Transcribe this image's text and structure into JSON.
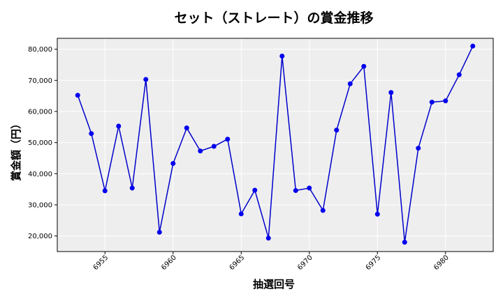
{
  "chart_data": {
    "type": "line",
    "title": "セット（ストレート）の賞金推移",
    "xlabel": "抽選回号",
    "ylabel": "賞金額（円）",
    "xlim": [
      6951.5,
      6983.5
    ],
    "ylim": [
      15000,
      83500
    ],
    "x_ticks": [
      6955,
      6960,
      6965,
      6970,
      6975,
      6980
    ],
    "y_ticks": [
      20000,
      30000,
      40000,
      50000,
      60000,
      70000,
      80000
    ],
    "y_tick_labels": [
      "20,000",
      "30,000",
      "40,000",
      "50,000",
      "60,000",
      "70,000",
      "80,000"
    ],
    "grid": true,
    "colors": {
      "line": "#0000cc",
      "marker": "#0000ee",
      "plot_bg": "#eeeeee",
      "grid": "#ffffff"
    },
    "series": [
      {
        "x": [
          6953,
          6954,
          6955,
          6956,
          6957,
          6958,
          6959,
          6960,
          6961,
          6962,
          6963,
          6964,
          6965,
          6966,
          6967,
          6968,
          6969,
          6970,
          6971,
          6972,
          6973,
          6974,
          6975,
          6976,
          6977,
          6978,
          6979,
          6980,
          6981,
          6982
        ],
        "values": [
          65200,
          52900,
          34500,
          55300,
          35400,
          70300,
          21200,
          43300,
          54700,
          47300,
          48800,
          51100,
          27100,
          34700,
          19300,
          77800,
          34600,
          35400,
          28200,
          54000,
          68900,
          74500,
          27000,
          66100,
          18000,
          48200,
          63000,
          63400,
          71800,
          81000
        ]
      }
    ]
  }
}
